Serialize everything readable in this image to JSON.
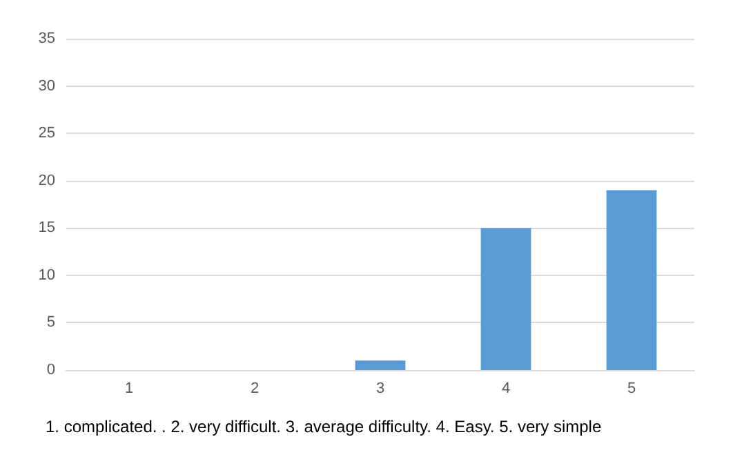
{
  "chart_data": {
    "type": "bar",
    "categories": [
      "1",
      "2",
      "3",
      "4",
      "5"
    ],
    "values": [
      0,
      0,
      1,
      15,
      19
    ],
    "color": "#5b9bd5",
    "ylim": [
      0,
      35
    ],
    "yticks": [
      0,
      5,
      10,
      15,
      20,
      25,
      30,
      35
    ],
    "grid": "y",
    "annotations": [
      "1. complicated. . 2. very difficult. 3. average difficulty. 4. Easy. 5. very simple"
    ]
  }
}
